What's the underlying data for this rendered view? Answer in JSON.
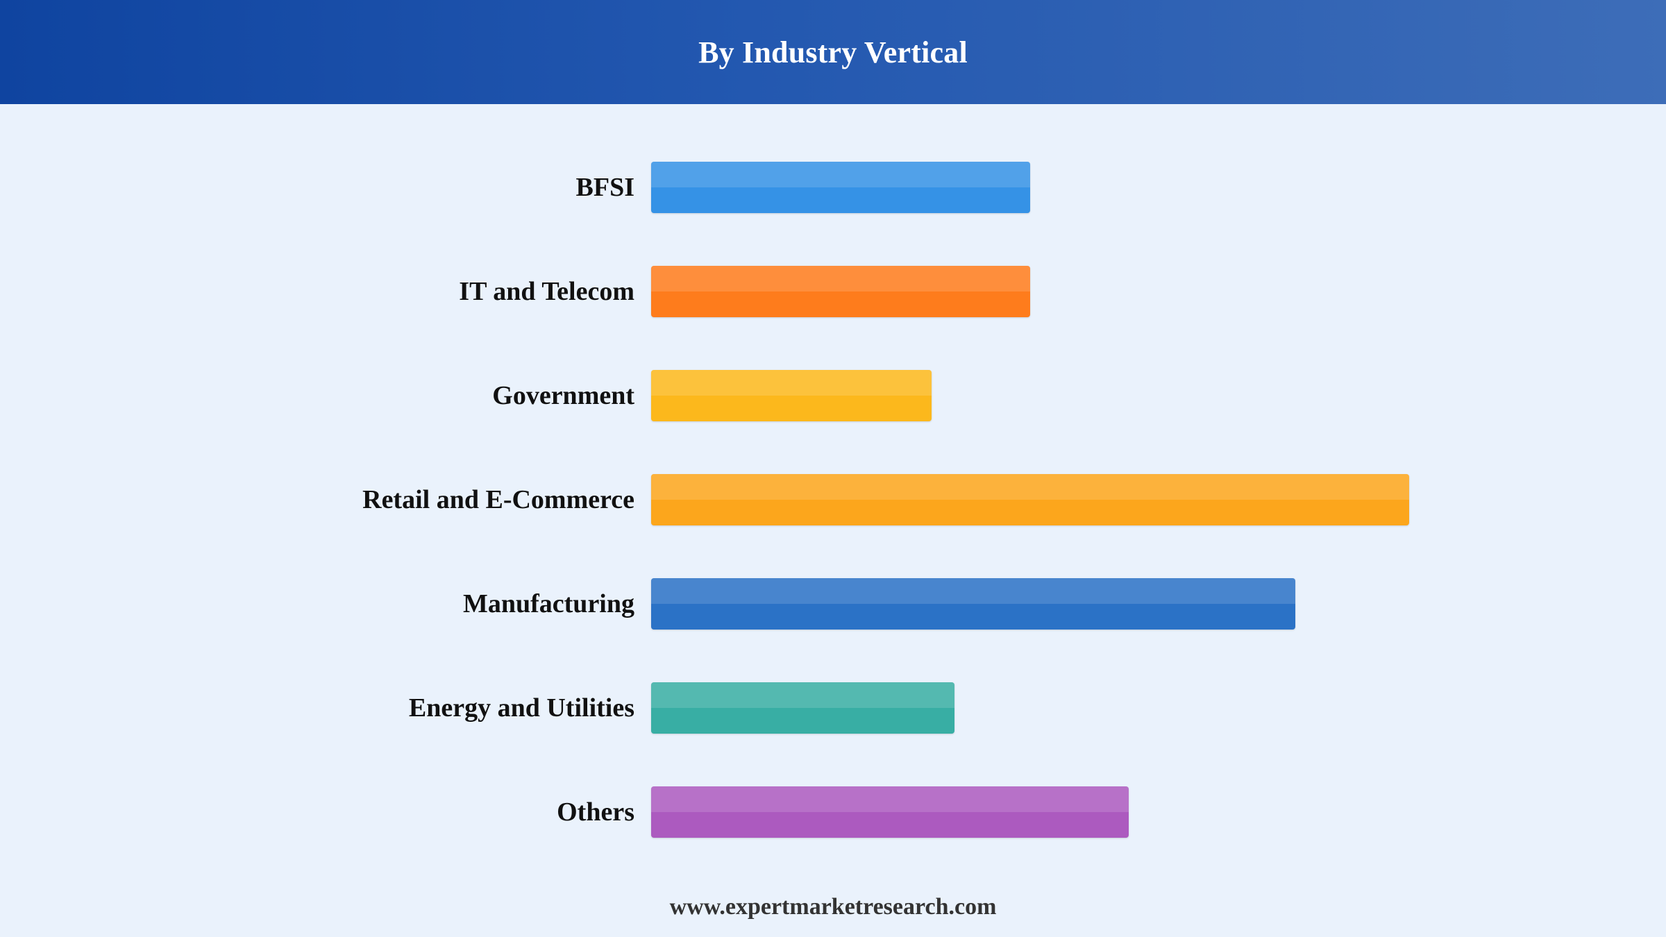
{
  "header": {
    "title": "By Industry Vertical"
  },
  "chart_data": {
    "type": "bar",
    "orientation": "horizontal",
    "title": "By Industry Vertical",
    "xlabel": "",
    "ylabel": "",
    "grid": false,
    "legend": "none",
    "xlim": [
      0,
      100
    ],
    "categories": [
      "BFSI",
      "IT and Telecom",
      "Government",
      "Retail and E-Commerce",
      "Manufacturing",
      "Energy and Utilities",
      "Others"
    ],
    "values": [
      50,
      50,
      37,
      100,
      85,
      40,
      63
    ],
    "colors": [
      "#3592e6",
      "#fe7c1c",
      "#fcb81c",
      "#fca61c",
      "#2b72c6",
      "#38aea4",
      "#ac5abf"
    ]
  },
  "footer": {
    "website": "www.expertmarketresearch.com"
  }
}
